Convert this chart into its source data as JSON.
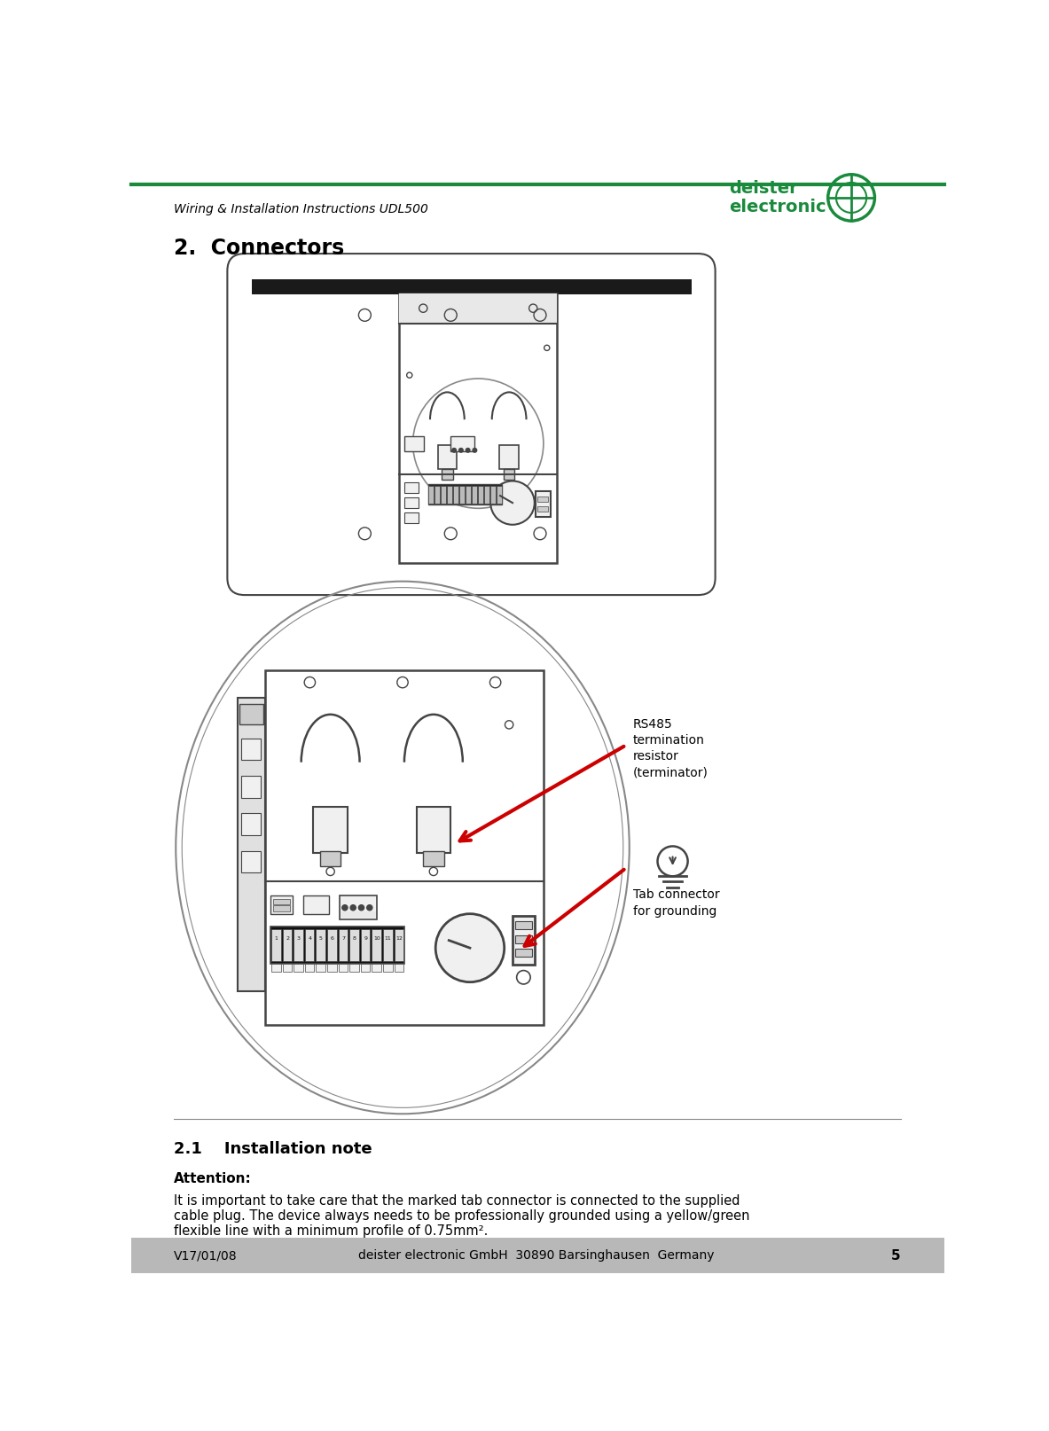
{
  "page_width": 11.83,
  "page_height": 16.14,
  "bg_color": "#ffffff",
  "header_line_color": "#1a8a3c",
  "header_text": "Wiring & Installation Instructions UDL500",
  "header_text_color": "#000000",
  "header_text_size": 10,
  "logo_color": "#1a8a3c",
  "section_title": "2.  Connectors",
  "section_title_size": 17,
  "subsection_title": "2.1    Installation note",
  "subsection_title_size": 13,
  "attention_label": "Attention:",
  "attention_size": 11,
  "body_text_line1": "It is important to take care that the marked tab connector is connected to the supplied",
  "body_text_line2": "cable plug. The device always needs to be professionally grounded using a yellow/green",
  "body_text_line3": "flexible line with a minimum profile of 0.75mm².",
  "body_text_size": 10.5,
  "footer_bg_color": "#b8b8b8",
  "footer_text_left": "V17/01/08",
  "footer_text_mid": "deister electronic GmbH  30890 Barsinghausen  Germany",
  "footer_page": "5",
  "footer_text_size": 10,
  "rs485_label": "RS485\ntermination\nresistor\n(terminator)",
  "tab_label": "Tab connector\nfor grounding",
  "annotation_color": "#cc0000",
  "line_color": "#444444",
  "light_line": "#888888",
  "fill_white": "#ffffff",
  "fill_light": "#f0f0f0",
  "fill_mid": "#cccccc",
  "fill_dark": "#999999"
}
